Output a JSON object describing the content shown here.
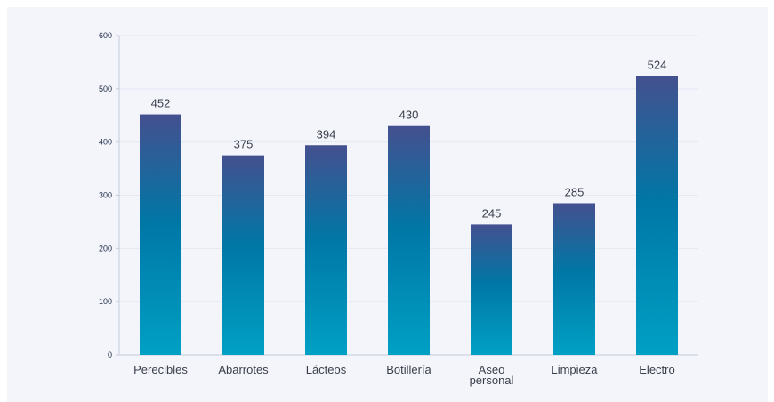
{
  "chart_data": {
    "type": "bar",
    "categories": [
      "Perecibles",
      "Abarrotes",
      "Lácteos",
      "Botillería",
      "Aseo personal",
      "Limpieza",
      "Electro"
    ],
    "category_lines": [
      [
        "Perecibles"
      ],
      [
        "Abarrotes"
      ],
      [
        "Lácteos"
      ],
      [
        "Botillería"
      ],
      [
        "Aseo",
        "personal"
      ],
      [
        "Limpieza"
      ],
      [
        "Electro"
      ]
    ],
    "values": [
      452,
      375,
      394,
      430,
      245,
      285,
      524
    ],
    "value_labels": [
      "452",
      "375",
      "394",
      "430",
      "245",
      "285",
      "524"
    ],
    "yticks": [
      0,
      100,
      200,
      300,
      400,
      500,
      600
    ],
    "ytick_labels": [
      "0",
      "100",
      "200",
      "300",
      "400",
      "500",
      "600"
    ],
    "ylim": [
      0,
      600
    ],
    "grid": true,
    "colors": {
      "bar_top": "#44508f",
      "bar_mid": "#0077a6",
      "bar_bottom": "#00a0c4"
    }
  }
}
